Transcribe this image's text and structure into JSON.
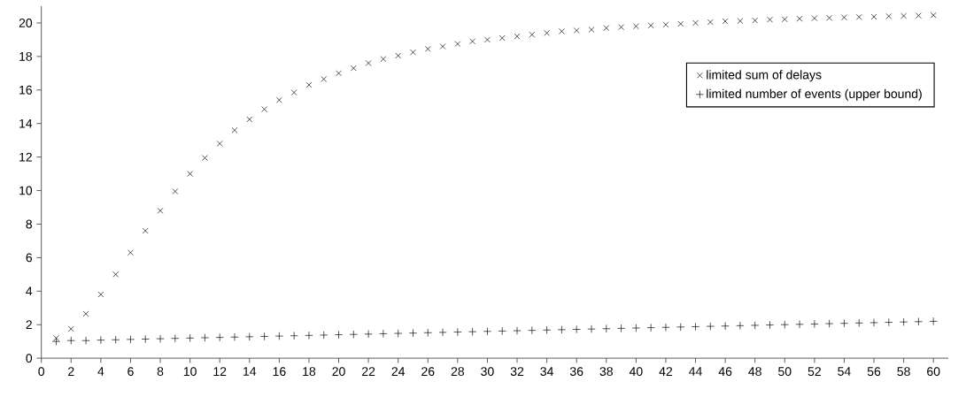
{
  "chart_data": {
    "type": "scatter",
    "x": [
      1,
      2,
      3,
      4,
      5,
      6,
      7,
      8,
      9,
      10,
      11,
      12,
      13,
      14,
      15,
      16,
      17,
      18,
      19,
      20,
      21,
      22,
      23,
      24,
      25,
      26,
      27,
      28,
      29,
      30,
      31,
      32,
      33,
      34,
      35,
      36,
      37,
      38,
      39,
      40,
      41,
      42,
      43,
      44,
      45,
      46,
      47,
      48,
      49,
      50,
      51,
      52,
      53,
      54,
      55,
      56,
      57,
      58,
      59,
      60
    ],
    "series": [
      {
        "name": "limited sum of delays",
        "color": "#000000",
        "marker": "cross",
        "values": [
          1.2,
          1.75,
          2.65,
          3.8,
          5.0,
          6.3,
          7.6,
          8.8,
          9.95,
          11.0,
          11.95,
          12.8,
          13.6,
          14.25,
          14.85,
          15.4,
          15.85,
          16.3,
          16.65,
          17.0,
          17.3,
          17.6,
          17.85,
          18.05,
          18.25,
          18.45,
          18.6,
          18.75,
          18.9,
          19.0,
          19.1,
          19.2,
          19.3,
          19.4,
          19.5,
          19.55,
          19.6,
          19.7,
          19.75,
          19.8,
          19.85,
          19.9,
          19.95,
          20.0,
          20.05,
          20.1,
          20.12,
          20.15,
          20.2,
          20.22,
          20.25,
          20.28,
          20.3,
          20.33,
          20.35,
          20.37,
          20.4,
          20.42,
          20.44,
          20.46
        ]
      },
      {
        "name": "limited number of events (upper bound)",
        "color": "#000000",
        "marker": "plus",
        "values": [
          1.0,
          1.05,
          1.05,
          1.08,
          1.1,
          1.12,
          1.14,
          1.16,
          1.18,
          1.2,
          1.22,
          1.24,
          1.26,
          1.28,
          1.3,
          1.32,
          1.34,
          1.36,
          1.38,
          1.4,
          1.42,
          1.44,
          1.46,
          1.48,
          1.5,
          1.52,
          1.54,
          1.56,
          1.58,
          1.6,
          1.62,
          1.64,
          1.66,
          1.68,
          1.7,
          1.72,
          1.74,
          1.76,
          1.78,
          1.8,
          1.82,
          1.84,
          1.86,
          1.88,
          1.9,
          1.92,
          1.94,
          1.96,
          1.98,
          2.0,
          2.02,
          2.04,
          2.06,
          2.08,
          2.1,
          2.12,
          2.14,
          2.16,
          2.18,
          2.2
        ]
      }
    ],
    "xlim": [
      0,
      61
    ],
    "ylim": [
      0,
      21
    ],
    "xticks": [
      0,
      2,
      4,
      6,
      8,
      10,
      12,
      14,
      16,
      18,
      20,
      22,
      24,
      26,
      28,
      30,
      32,
      34,
      36,
      38,
      40,
      42,
      44,
      46,
      48,
      50,
      52,
      54,
      56,
      58,
      60
    ],
    "yticks": [
      0,
      2,
      4,
      6,
      8,
      10,
      12,
      14,
      16,
      18,
      20
    ],
    "grid": false,
    "legend": "top right"
  }
}
